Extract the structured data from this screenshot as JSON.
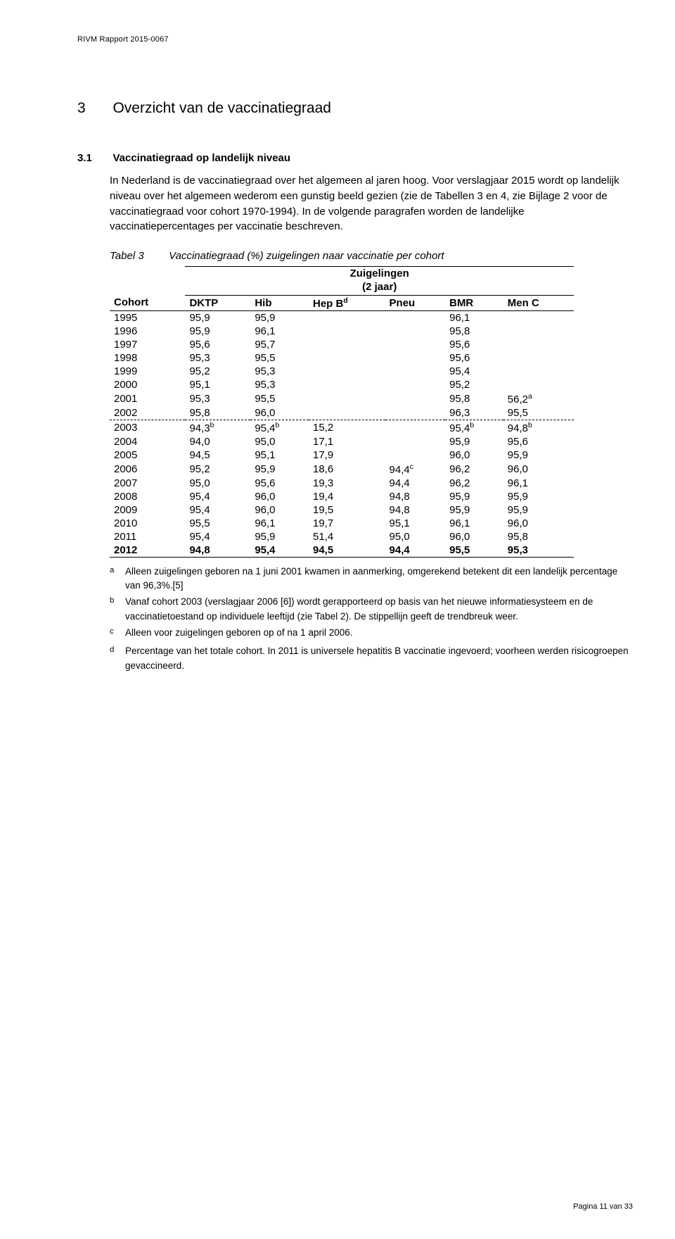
{
  "running_header": "RIVM Rapport 2015-0067",
  "section": {
    "num": "3",
    "title": "Overzicht van de vaccinatiegraad"
  },
  "subsection": {
    "num": "3.1",
    "title": "Vaccinatiegraad op landelijk niveau"
  },
  "para1": "In Nederland is de vaccinatiegraad over het algemeen al jaren hoog. Voor verslagjaar 2015 wordt op landelijk niveau over het algemeen wederom een gunstig beeld gezien (zie de Tabellen 3 en 4, zie Bijlage 2 voor de vaccinatiegraad voor cohort 1970-1994). In de volgende paragrafen worden de landelijke vaccinatiepercentages per vaccinatie beschreven.",
  "table": {
    "label": "Tabel 3",
    "caption": "Vaccinatiegraad (%) zuigelingen naar vaccinatie per cohort",
    "group_header": "Zuigelingen\n(2 jaar)",
    "columns": [
      "Cohort",
      "DKTP",
      "Hib",
      "Hep B",
      "Pneu",
      "BMR",
      "Men C"
    ],
    "hepb_sup": "d",
    "rows": [
      {
        "cohort": "1995",
        "dktp": "95,9",
        "hib": "95,9",
        "hepb": "",
        "pneu": "",
        "bmr": "96,1",
        "menc": ""
      },
      {
        "cohort": "1996",
        "dktp": "95,9",
        "hib": "96,1",
        "hepb": "",
        "pneu": "",
        "bmr": "95,8",
        "menc": ""
      },
      {
        "cohort": "1997",
        "dktp": "95,6",
        "hib": "95,7",
        "hepb": "",
        "pneu": "",
        "bmr": "95,6",
        "menc": ""
      },
      {
        "cohort": "1998",
        "dktp": "95,3",
        "hib": "95,5",
        "hepb": "",
        "pneu": "",
        "bmr": "95,6",
        "menc": ""
      },
      {
        "cohort": "1999",
        "dktp": "95,2",
        "hib": "95,3",
        "hepb": "",
        "pneu": "",
        "bmr": "95,4",
        "menc": ""
      },
      {
        "cohort": "2000",
        "dktp": "95,1",
        "hib": "95,3",
        "hepb": "",
        "pneu": "",
        "bmr": "95,2",
        "menc": ""
      },
      {
        "cohort": "2001",
        "dktp": "95,3",
        "hib": "95,5",
        "hepb": "",
        "pneu": "",
        "bmr": "95,8",
        "menc": "56,2",
        "menc_sup": "a"
      },
      {
        "cohort": "2002",
        "dktp": "95,8",
        "hib": "96,0",
        "hepb": "",
        "pneu": "",
        "bmr": "96,3",
        "menc": "95,5"
      },
      {
        "cohort": "2003",
        "dktp": "94,3",
        "dktp_sup": "b",
        "hib": "95,4",
        "hib_sup": "b",
        "hepb": "15,2",
        "pneu": "",
        "bmr": "95,4",
        "bmr_sup": "b",
        "menc": "94,8",
        "menc_sup": "b",
        "trendbreak": true
      },
      {
        "cohort": "2004",
        "dktp": "94,0",
        "hib": "95,0",
        "hepb": "17,1",
        "pneu": "",
        "bmr": "95,9",
        "menc": "95,6"
      },
      {
        "cohort": "2005",
        "dktp": "94,5",
        "hib": "95,1",
        "hepb": "17,9",
        "pneu": "",
        "bmr": "96,0",
        "menc": "95,9"
      },
      {
        "cohort": "2006",
        "dktp": "95,2",
        "hib": "95,9",
        "hepb": "18,6",
        "pneu": "94,4",
        "pneu_sup": "c",
        "bmr": "96,2",
        "menc": "96,0"
      },
      {
        "cohort": "2007",
        "dktp": "95,0",
        "hib": "95,6",
        "hepb": "19,3",
        "pneu": "94,4",
        "bmr": "96,2",
        "menc": "96,1"
      },
      {
        "cohort": "2008",
        "dktp": "95,4",
        "hib": "96,0",
        "hepb": "19,4",
        "pneu": "94,8",
        "bmr": "95,9",
        "menc": "95,9"
      },
      {
        "cohort": "2009",
        "dktp": "95,4",
        "hib": "96,0",
        "hepb": "19,5",
        "pneu": "94,8",
        "bmr": "95,9",
        "menc": "95,9"
      },
      {
        "cohort": "2010",
        "dktp": "95,5",
        "hib": "96,1",
        "hepb": "19,7",
        "pneu": "95,1",
        "bmr": "96,1",
        "menc": "96,0"
      },
      {
        "cohort": "2011",
        "dktp": "95,4",
        "hib": "95,9",
        "hepb": "51,4",
        "pneu": "95,0",
        "bmr": "96,0",
        "menc": "95,8"
      },
      {
        "cohort": "2012",
        "dktp": "94,8",
        "hib": "95,4",
        "hepb": "94,5",
        "pneu": "94,4",
        "bmr": "95,5",
        "menc": "95,3",
        "bold": true
      }
    ]
  },
  "footnotes": {
    "a": "Alleen zuigelingen geboren na 1 juni 2001 kwamen in aanmerking, omgerekend betekent dit een landelijk percentage van 96,3%.[5]",
    "b": "Vanaf cohort 2003 (verslagjaar 2006 [6]) wordt gerapporteerd op basis van het nieuwe informatiesysteem en de vaccinatietoestand op individuele leeftijd (zie Tabel 2). De stippellijn geeft de trendbreuk weer.",
    "c": "Alleen voor zuigelingen geboren op of na 1 april 2006.",
    "d": "Percentage van het totale cohort. In 2011 is universele hepatitis B vaccinatie ingevoerd; voorheen werden risicogroepen gevaccineerd."
  },
  "footer": "Pagina 11 van 33"
}
